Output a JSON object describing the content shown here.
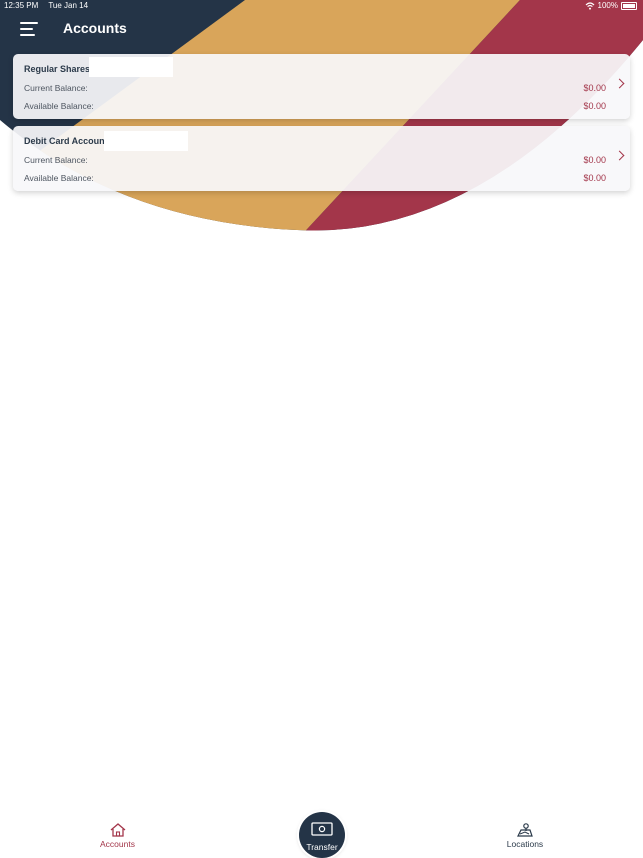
{
  "status_bar": {
    "time": "12:35 PM",
    "date": "Tue Jan 14",
    "battery": "100%"
  },
  "header": {
    "title": "Accounts",
    "menu_icon": "hamburger-menu-icon"
  },
  "accounts": [
    {
      "name": "Regular Shares",
      "paren": "(",
      "current_label": "Current Balance:",
      "current_value": "$0.00",
      "available_label": "Available Balance:",
      "available_value": "$0.00"
    },
    {
      "name": "Debit Card Account",
      "paren": "(",
      "current_label": "Current Balance:",
      "current_value": "$0.00",
      "available_label": "Available Balance:",
      "available_value": "$0.00"
    }
  ],
  "tabbar": {
    "accounts": "Accounts",
    "transfer": "Transfer",
    "locations": "Locations"
  },
  "colors": {
    "navy": "#243447",
    "gold": "#d9a55a",
    "maroon": "#a3364a"
  }
}
